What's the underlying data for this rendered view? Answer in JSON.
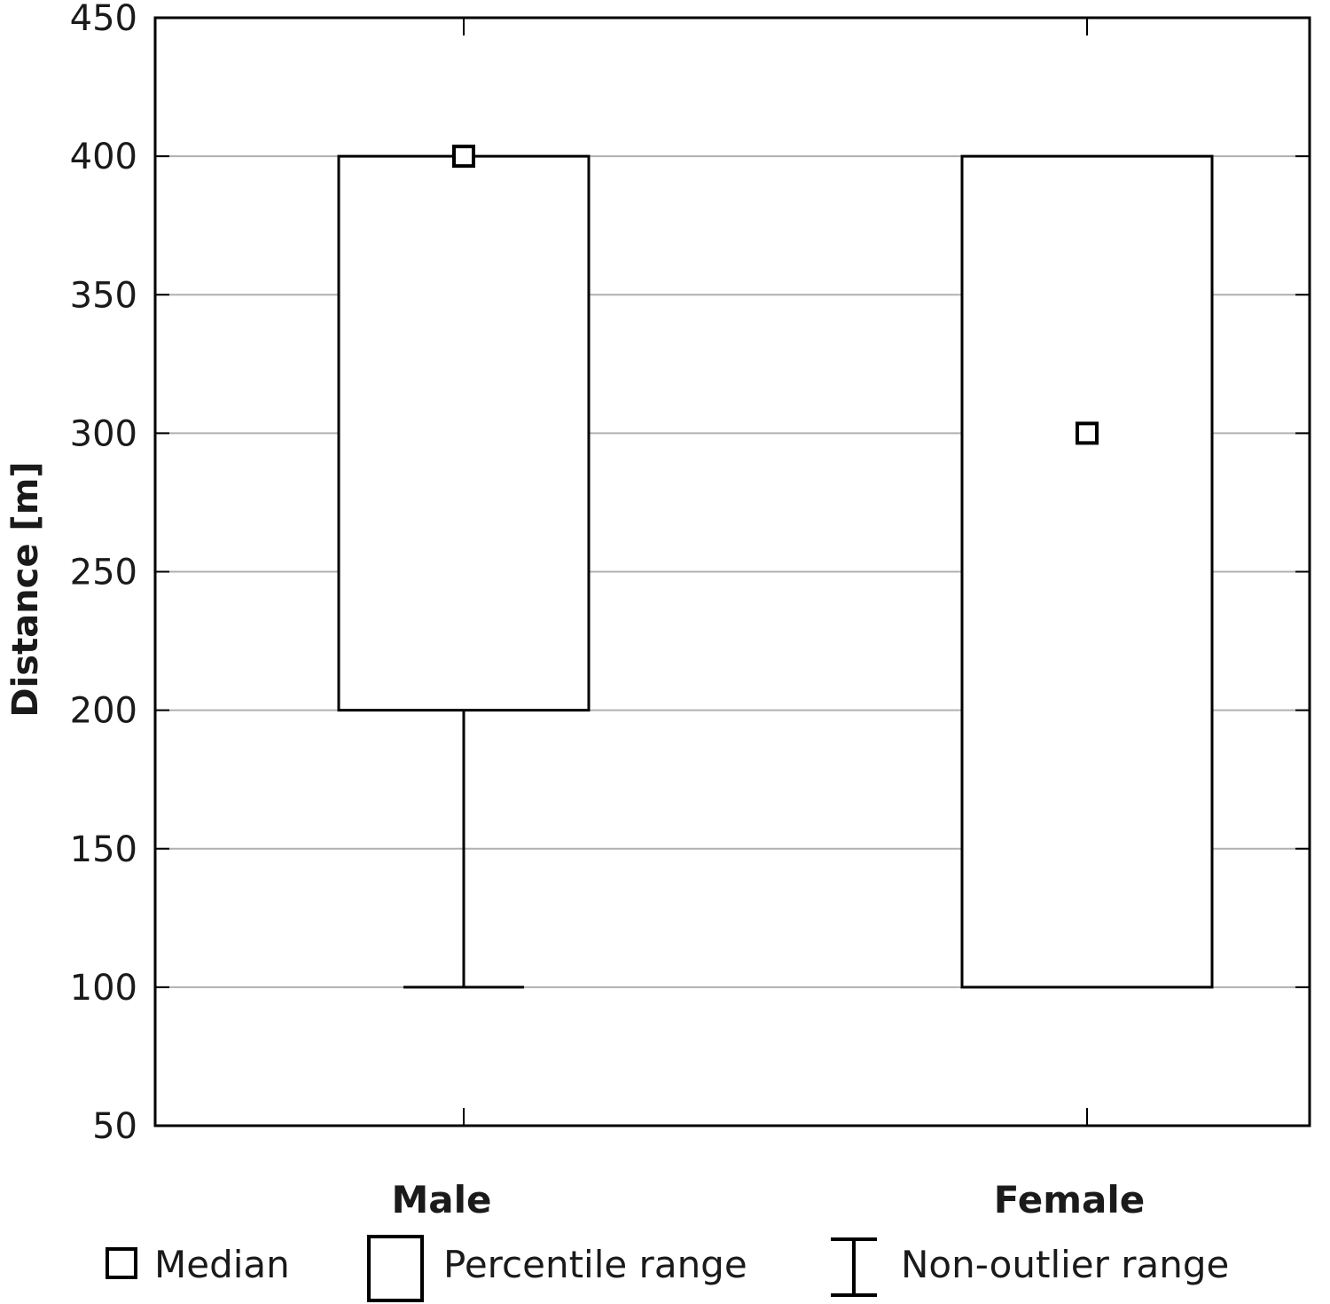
{
  "chart_data": {
    "type": "box",
    "ylabel": "Distance [m]",
    "xlabel": "",
    "ylim": [
      50,
      450
    ],
    "yticks": [
      50,
      100,
      150,
      200,
      250,
      300,
      350,
      400,
      450
    ],
    "grid": true,
    "categories": [
      "Male",
      "Female"
    ],
    "boxes": [
      {
        "category": "Male",
        "median": 400,
        "box_low": 200,
        "box_high": 400,
        "whisker_low": 100,
        "whisker_high": 400
      },
      {
        "category": "Female",
        "median": 300,
        "box_low": 100,
        "box_high": 400,
        "whisker_low": 100,
        "whisker_high": 400
      }
    ],
    "legend": {
      "position": "bottom",
      "items": [
        {
          "symbol": "median",
          "label": "Median"
        },
        {
          "symbol": "box",
          "label": "Percentile range"
        },
        {
          "symbol": "whisker",
          "label": "Non-outlier range"
        }
      ]
    },
    "colors": {
      "stroke": "#000000",
      "grid": "#b0b0b0",
      "fill": "#ffffff"
    }
  }
}
